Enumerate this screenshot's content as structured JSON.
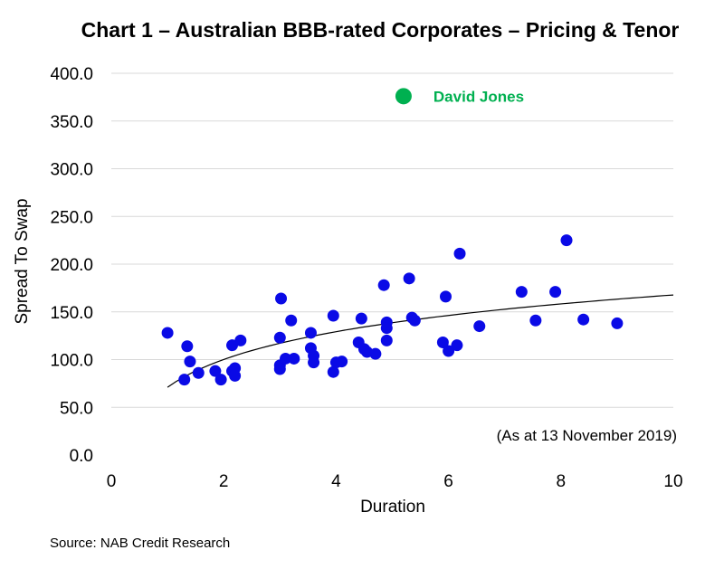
{
  "chart_data": {
    "type": "scatter",
    "title": "Chart 1 – Australian BBB-rated Corporates – Pricing & Tenor",
    "xlabel": "Duration",
    "ylabel": "Spread To Swap",
    "xlim": [
      0,
      10
    ],
    "ylim": [
      0,
      400
    ],
    "x_ticks": [
      "0",
      "2",
      "4",
      "6",
      "8",
      "10"
    ],
    "y_ticks": [
      "0.0",
      "50.0",
      "100.0",
      "150.0",
      "200.0",
      "250.0",
      "300.0",
      "350.0",
      "400.0"
    ],
    "grid": "horizontal",
    "annotation": "(As at 13 November 2019)",
    "source": "Source: NAB Credit Research",
    "colors": {
      "points": "#0a0ae6",
      "highlight": "#00b050",
      "trendline": "#000000",
      "grid": "#d9d9d9"
    },
    "highlight": {
      "label": "David Jones",
      "x": 5.2,
      "y": 376
    },
    "series": [
      {
        "points": [
          [
            1.0,
            128
          ],
          [
            1.3,
            79
          ],
          [
            1.35,
            114
          ],
          [
            1.4,
            98
          ],
          [
            1.55,
            86
          ],
          [
            1.85,
            88
          ],
          [
            1.95,
            79
          ],
          [
            2.15,
            88
          ],
          [
            2.15,
            115
          ],
          [
            2.2,
            83
          ],
          [
            2.2,
            91
          ],
          [
            2.3,
            120
          ],
          [
            3.0,
            123
          ],
          [
            3.0,
            94
          ],
          [
            3.0,
            90
          ],
          [
            3.02,
            164
          ],
          [
            3.1,
            101
          ],
          [
            3.2,
            141
          ],
          [
            3.25,
            101
          ],
          [
            3.55,
            128
          ],
          [
            3.55,
            112
          ],
          [
            3.6,
            104
          ],
          [
            3.6,
            97
          ],
          [
            3.95,
            146
          ],
          [
            3.95,
            87
          ],
          [
            4.0,
            97
          ],
          [
            4.1,
            98
          ],
          [
            4.4,
            118
          ],
          [
            4.45,
            143
          ],
          [
            4.5,
            111
          ],
          [
            4.55,
            108
          ],
          [
            4.7,
            106
          ],
          [
            4.85,
            178
          ],
          [
            4.9,
            139
          ],
          [
            4.9,
            133
          ],
          [
            4.9,
            120
          ],
          [
            5.3,
            185
          ],
          [
            5.35,
            144
          ],
          [
            5.4,
            141
          ],
          [
            5.9,
            118
          ],
          [
            5.95,
            166
          ],
          [
            6.0,
            109
          ],
          [
            6.15,
            115
          ],
          [
            6.2,
            211
          ],
          [
            6.55,
            135
          ],
          [
            7.3,
            171
          ],
          [
            7.55,
            141
          ],
          [
            7.9,
            171
          ],
          [
            8.1,
            225
          ],
          [
            8.4,
            142
          ],
          [
            9.0,
            138
          ]
        ]
      }
    ],
    "trendline": {
      "type": "logarithmic",
      "x_range": [
        1.0,
        10.0
      ],
      "a": 71,
      "b": 42
    }
  }
}
